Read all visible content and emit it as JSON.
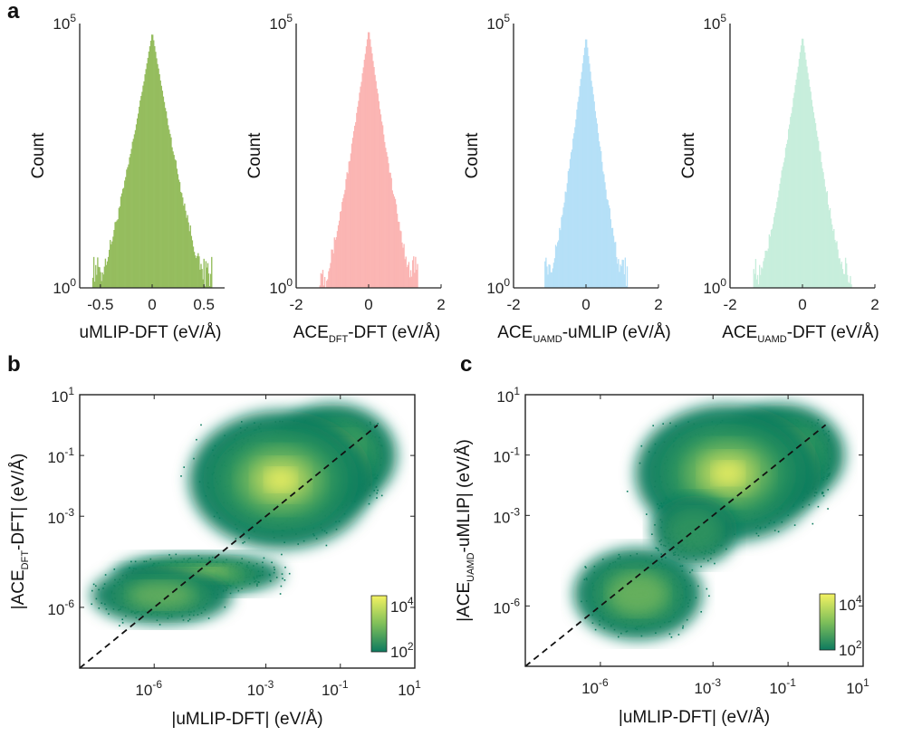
{
  "figure_labels": {
    "a": "a",
    "b": "b",
    "c": "c"
  },
  "colors": {
    "hist1": "#95bd5e",
    "hist2": "#fbb5b3",
    "hist3": "#b5e0f7",
    "hist4": "#c7eedc",
    "density_low": "#0d7a5f",
    "density_high": "#f4f262",
    "diagonal": "#111111"
  },
  "chart_data": [
    {
      "type": "histogram",
      "panel": "a",
      "ylabel": "Count",
      "xlabel_main": "uMLIP-DFT (eV/Å)",
      "xlabel_sub": "",
      "xlabel_tail": "",
      "yscale": "log",
      "ylim": [
        1,
        100000
      ],
      "ytick_labels": [
        {
          "base": "10",
          "exp": "5"
        },
        {
          "base": "10",
          "exp": "0"
        }
      ],
      "xlim": [
        -0.7,
        0.7
      ],
      "xtick_values": [
        -0.5,
        0,
        0.5
      ],
      "xtick_labels": [
        "-0.5",
        "0",
        "0.5"
      ],
      "peak_count": 70000,
      "base_halfwidth": 0.55,
      "color": "#95bd5e"
    },
    {
      "type": "histogram",
      "panel": "a",
      "ylabel": "Count",
      "xlabel_main": "ACE",
      "xlabel_sub": "DFT",
      "xlabel_tail": "-DFT (eV/Å)",
      "yscale": "log",
      "ylim": [
        1,
        100000
      ],
      "ytick_labels": [
        {
          "base": "10",
          "exp": "5"
        },
        {
          "base": "10",
          "exp": "0"
        }
      ],
      "xlim": [
        -2,
        2
      ],
      "xtick_values": [
        -2,
        0,
        2
      ],
      "xtick_labels": [
        "-2",
        "0",
        "2"
      ],
      "peak_count": 80000,
      "base_halfwidth": 1.3,
      "color": "#fbb5b3"
    },
    {
      "type": "histogram",
      "panel": "a",
      "ylabel": "Count",
      "xlabel_main": "ACE",
      "xlabel_sub": "UAMD",
      "xlabel_tail": "-uMLIP (eV/Å)",
      "yscale": "log",
      "ylim": [
        1,
        100000
      ],
      "ytick_labels": [
        {
          "base": "10",
          "exp": "5"
        },
        {
          "base": "10",
          "exp": "0"
        }
      ],
      "xlim": [
        -2,
        2
      ],
      "xtick_values": [
        -2,
        0,
        2
      ],
      "xtick_labels": [
        "-2",
        "0",
        "2"
      ],
      "peak_count": 60000,
      "base_halfwidth": 1.1,
      "color": "#b5e0f7"
    },
    {
      "type": "histogram",
      "panel": "a",
      "ylabel": "Count",
      "xlabel_main": "ACE",
      "xlabel_sub": "UAMD",
      "xlabel_tail": "-DFT (eV/Å)",
      "yscale": "log",
      "ylim": [
        1,
        100000
      ],
      "ytick_labels": [
        {
          "base": "10",
          "exp": "5"
        },
        {
          "base": "10",
          "exp": "0"
        }
      ],
      "xlim": [
        -2,
        2
      ],
      "xtick_values": [
        -2,
        0,
        2
      ],
      "xtick_labels": [
        "-2",
        "0",
        "2"
      ],
      "peak_count": 60000,
      "base_halfwidth": 1.3,
      "color": "#c7eedc"
    },
    {
      "type": "heatmap",
      "panel": "b",
      "xlabel": "|uMLIP-DFT| (eV/Å)",
      "ylabel_main": "|ACE",
      "ylabel_sub": "DFT",
      "ylabel_tail": "-DFT| (eV/Å)",
      "xscale": "log",
      "yscale": "log",
      "xlim": [
        1e-08,
        10
      ],
      "ylim": [
        1e-08,
        10
      ],
      "xtick_labels": [
        {
          "base": "10",
          "exp": "-6"
        },
        {
          "base": "10",
          "exp": "-3"
        },
        {
          "base": "10",
          "exp": "-1"
        },
        {
          "base": "10",
          "exp": "1"
        }
      ],
      "ytick_labels": [
        {
          "base": "10",
          "exp": "1"
        },
        {
          "base": "10",
          "exp": "-1"
        },
        {
          "base": "10",
          "exp": "-3"
        },
        {
          "base": "10",
          "exp": "-6"
        }
      ],
      "tick_exponents": [
        -6,
        -3,
        -1,
        1
      ],
      "diagonal": "y = x (dashed)",
      "colorbar": {
        "range_log10": [
          2,
          4
        ],
        "labels": [
          {
            "base": "10",
            "exp": "4"
          },
          {
            "base": "10",
            "exp": "2"
          }
        ]
      },
      "blobs": [
        {
          "cx": -1.2,
          "cy": -1.0,
          "sx": 0.9,
          "sy": 0.9,
          "level": 1.0
        },
        {
          "cx": -2.6,
          "cy": -1.8,
          "sx": 1.3,
          "sy": 1.2,
          "level": 0.55
        },
        {
          "cx": -4.8,
          "cy": -4.9,
          "sx": 1.2,
          "sy": 0.35,
          "level": 0.55
        },
        {
          "cx": -5.8,
          "cy": -5.6,
          "sx": 1.0,
          "sy": 0.5,
          "level": 0.4
        }
      ]
    },
    {
      "type": "heatmap",
      "panel": "c",
      "xlabel": "|uMLIP-DFT| (eV/Å)",
      "ylabel_main": "|ACE",
      "ylabel_sub": "UAMD",
      "ylabel_tail": "-uMLIP| (eV/Å)",
      "xscale": "log",
      "yscale": "log",
      "xlim": [
        1e-08,
        10
      ],
      "ylim": [
        1e-08,
        10
      ],
      "xtick_labels": [
        {
          "base": "10",
          "exp": "-6"
        },
        {
          "base": "10",
          "exp": "-3"
        },
        {
          "base": "10",
          "exp": "-1"
        },
        {
          "base": "10",
          "exp": "1"
        }
      ],
      "ytick_labels": [
        {
          "base": "10",
          "exp": "1"
        },
        {
          "base": "10",
          "exp": "-1"
        },
        {
          "base": "10",
          "exp": "-3"
        },
        {
          "base": "10",
          "exp": "-6"
        }
      ],
      "tick_exponents": [
        -6,
        -3,
        -1,
        1
      ],
      "diagonal": "y = x (dashed)",
      "colorbar": {
        "range_log10": [
          2,
          4
        ],
        "labels": [
          {
            "base": "10",
            "exp": "4"
          },
          {
            "base": "10",
            "exp": "2"
          }
        ]
      },
      "blobs": [
        {
          "cx": -1.2,
          "cy": -1.0,
          "sx": 0.9,
          "sy": 0.9,
          "level": 1.0
        },
        {
          "cx": -2.6,
          "cy": -1.6,
          "sx": 1.3,
          "sy": 1.2,
          "level": 0.55
        },
        {
          "cx": -5.0,
          "cy": -5.6,
          "sx": 0.9,
          "sy": 0.8,
          "level": 0.45
        },
        {
          "cx": -3.5,
          "cy": -3.5,
          "sx": 0.6,
          "sy": 0.6,
          "level": 0.3
        }
      ]
    }
  ]
}
